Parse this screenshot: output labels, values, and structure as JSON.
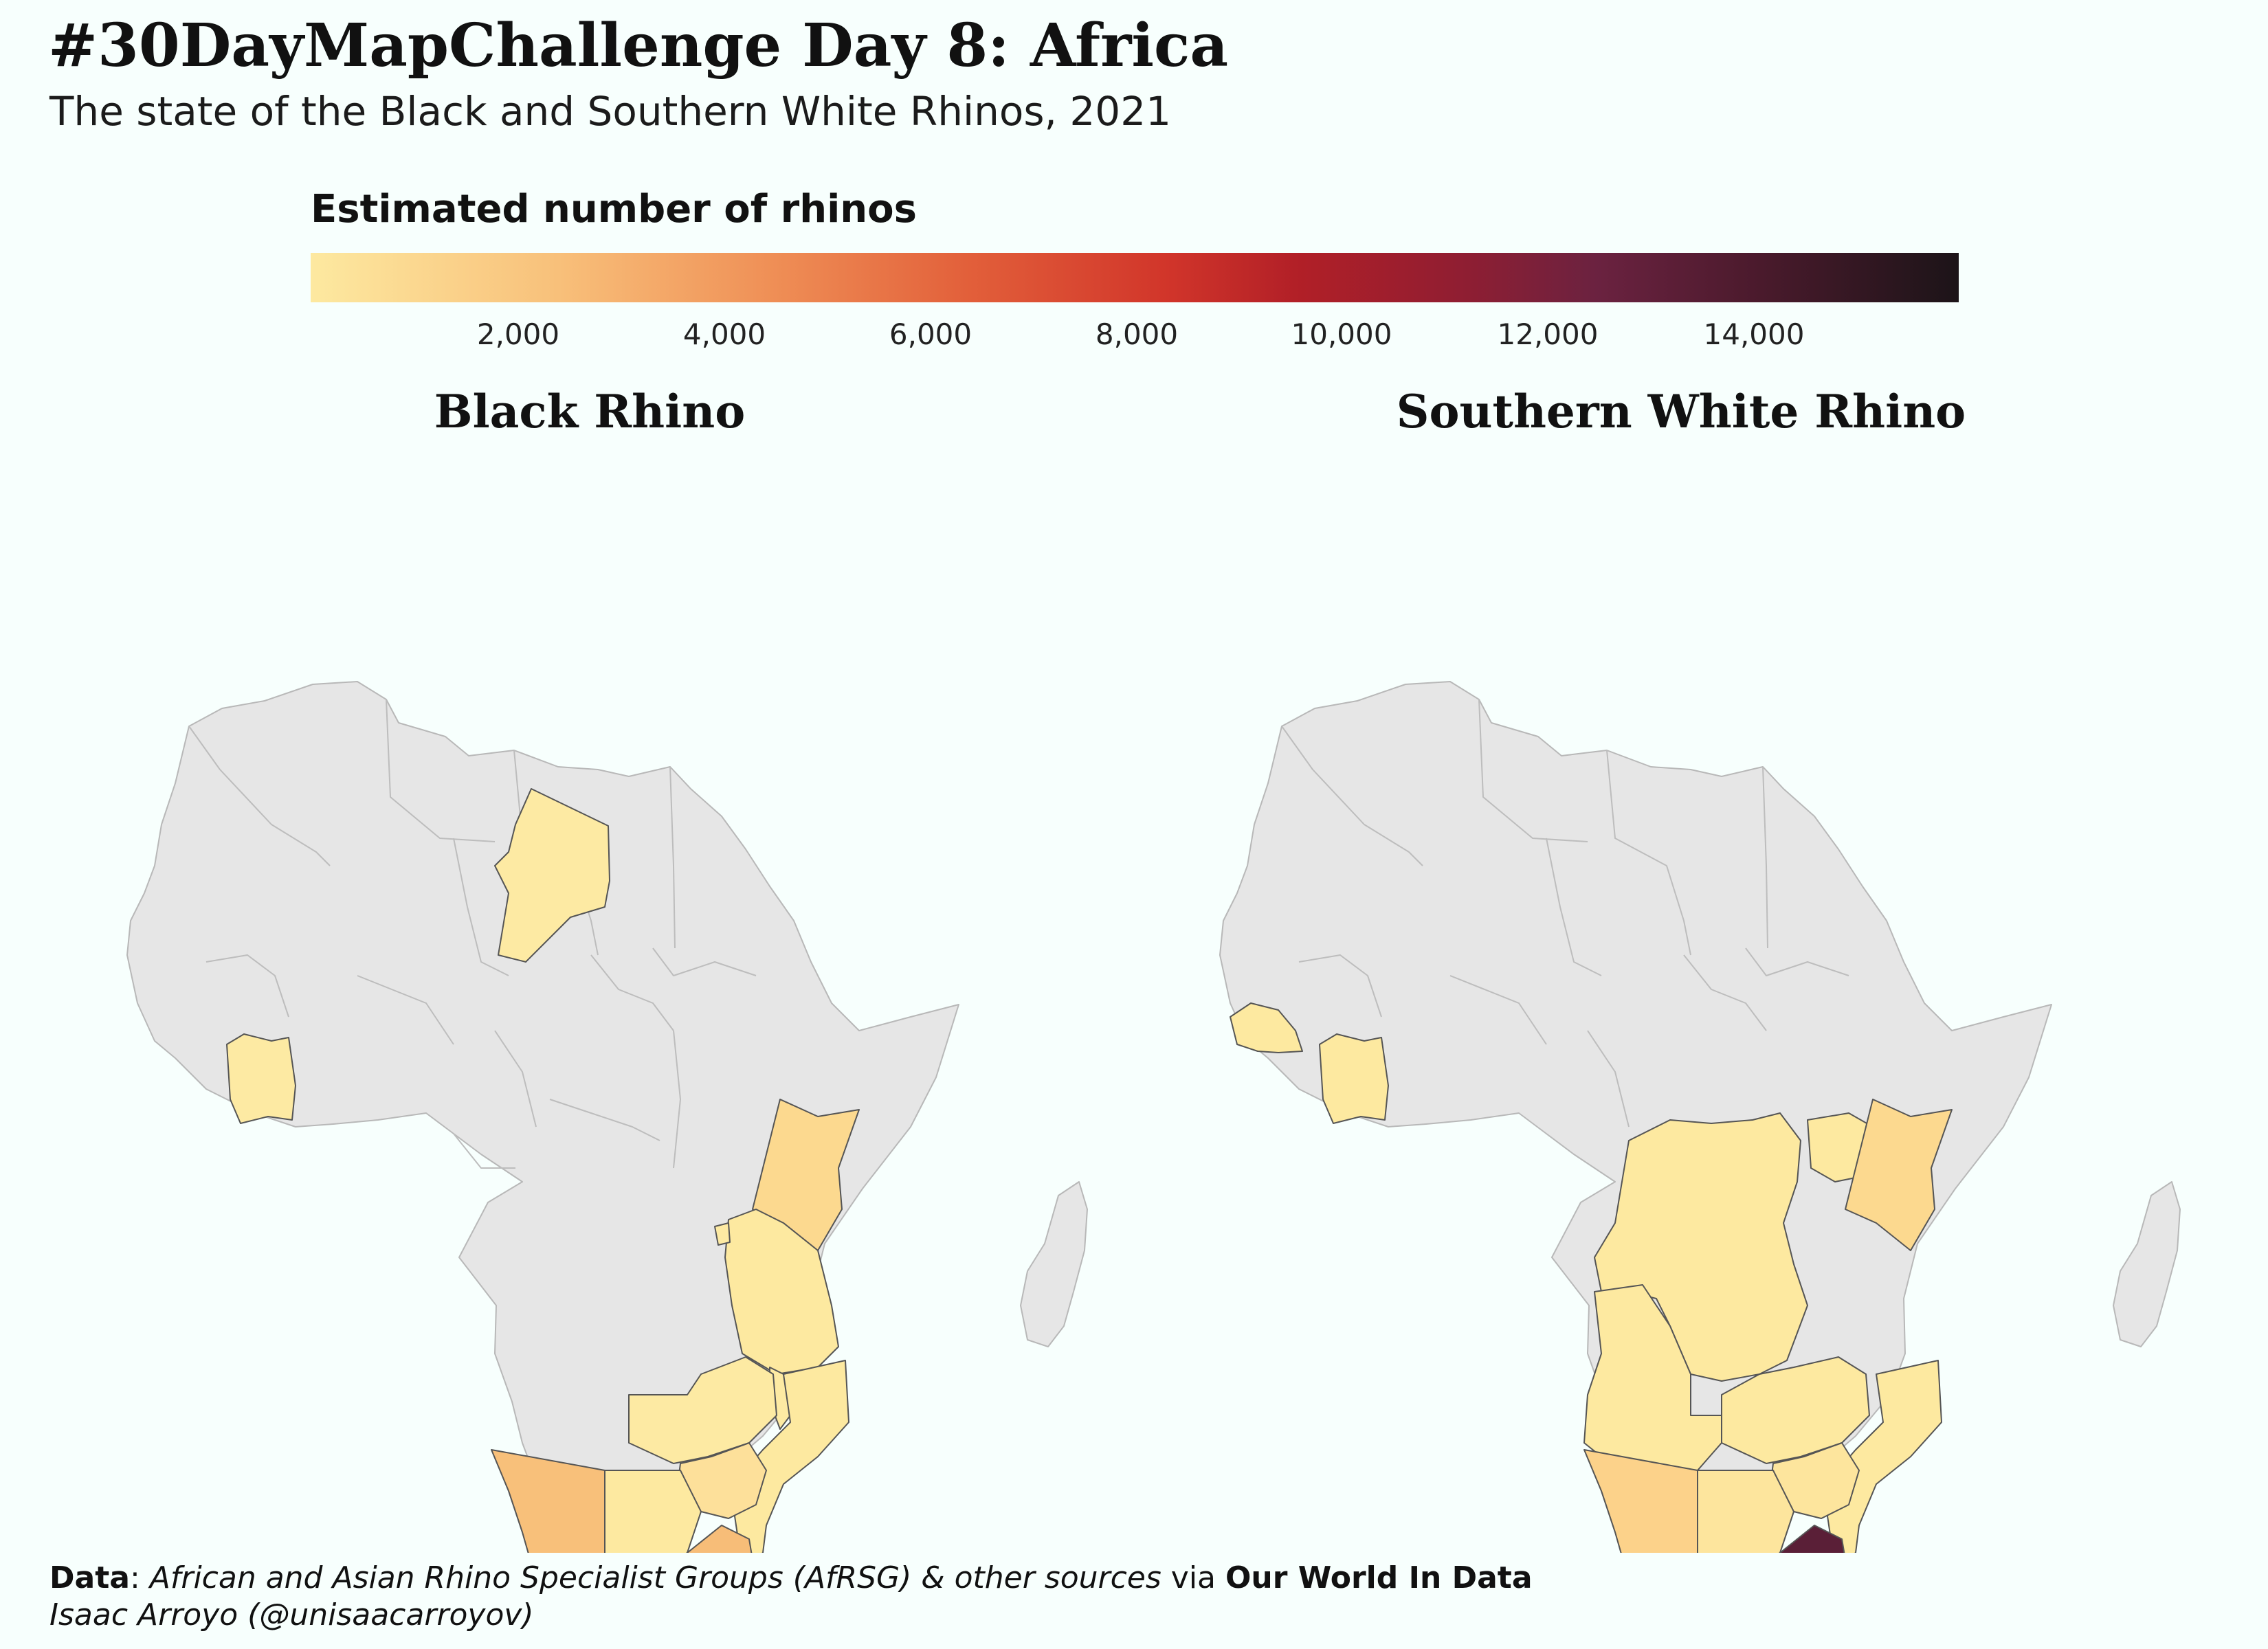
{
  "title": "#30DayMapChallenge Day 8: Africa",
  "subtitle": "The state of the Black and Southern White Rhinos, 2021",
  "legend": {
    "title": "Estimated number of rhinos",
    "ticks": [
      "2,000",
      "4,000",
      "6,000",
      "8,000",
      "10,000",
      "12,000",
      "14,000"
    ],
    "range": [
      0,
      16000
    ],
    "colors": [
      "#fde9a0",
      "#f8c07a",
      "#e25f3a",
      "#b11f27",
      "#6b2240",
      "#1c1418"
    ]
  },
  "maps": [
    {
      "title": "Black Rhino",
      "regions": [
        {
          "country": "Chad",
          "value": 100,
          "color": "#fdeaa3"
        },
        {
          "country": "Cote d'Ivoire",
          "value": 100,
          "color": "#fdeaa3"
        },
        {
          "country": "Kenya",
          "value": 900,
          "color": "#fcd98f"
        },
        {
          "country": "Tanzania",
          "value": 170,
          "color": "#fde9a0"
        },
        {
          "country": "Rwanda",
          "value": 50,
          "color": "#fdeaa3"
        },
        {
          "country": "Malawi",
          "value": 60,
          "color": "#fdeaa3"
        },
        {
          "country": "Zambia",
          "value": 60,
          "color": "#fdeaa3"
        },
        {
          "country": "Mozambique",
          "value": 30,
          "color": "#fde9a0"
        },
        {
          "country": "Zimbabwe",
          "value": 600,
          "color": "#fde09a"
        },
        {
          "country": "Botswana",
          "value": 100,
          "color": "#fde9a0"
        },
        {
          "country": "Eswatini",
          "value": 40,
          "color": "#fde9a0"
        },
        {
          "country": "Namibia",
          "value": 2000,
          "color": "#f8c07a"
        },
        {
          "country": "South Africa",
          "value": 2050,
          "color": "#f7bd78"
        }
      ]
    },
    {
      "title": "Southern White Rhino",
      "regions": [
        {
          "country": "Senegal",
          "value": 10,
          "color": "#fde9a0"
        },
        {
          "country": "Cote d'Ivoire",
          "value": 10,
          "color": "#fde9a0"
        },
        {
          "country": "Uganda",
          "value": 30,
          "color": "#fde9a0"
        },
        {
          "country": "Kenya",
          "value": 900,
          "color": "#fcd98f"
        },
        {
          "country": "Democratic Republic of the Congo",
          "value": 10,
          "color": "#fde9a0"
        },
        {
          "country": "Angola",
          "value": 10,
          "color": "#fde9a0"
        },
        {
          "country": "Zambia",
          "value": 10,
          "color": "#fde9a0"
        },
        {
          "country": "Mozambique",
          "value": 30,
          "color": "#fde9a0"
        },
        {
          "country": "Zimbabwe",
          "value": 300,
          "color": "#fde59d"
        },
        {
          "country": "Botswana",
          "value": 300,
          "color": "#fde59d"
        },
        {
          "country": "Eswatini",
          "value": 90,
          "color": "#fde9a0"
        },
        {
          "country": "Namibia",
          "value": 1050,
          "color": "#fcd28a"
        },
        {
          "country": "South Africa",
          "value": 12968,
          "color": "#5a1f37"
        }
      ]
    }
  ],
  "caption": {
    "data_label": "Data",
    "source": "African and Asian Rhino Specialist Groups (AfRSG) & other sources",
    "via": "via",
    "publisher": "Our World In Data",
    "author": "Isaac Arroyo (@unisaacarroyov)"
  }
}
